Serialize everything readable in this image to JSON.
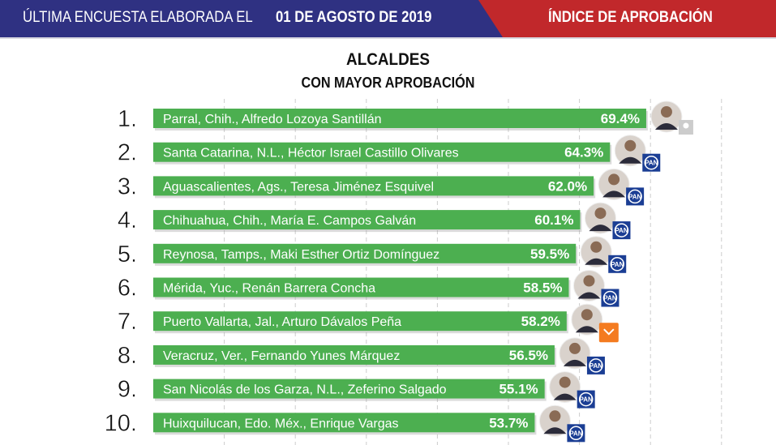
{
  "header": {
    "left_label": "ÚLTIMA ENCUESTA ELABORADA EL",
    "date": "01 DE AGOSTO DE 2019",
    "right_label": "ÍNDICE DE APROBACIÓN"
  },
  "colors": {
    "header_blue": "#2f3182",
    "header_red": "#c1282b",
    "bar": "#4caf50",
    "pan": "#1b3e94",
    "mc": "#f47b20"
  },
  "chart_data": {
    "type": "bar",
    "orientation": "horizontal",
    "title": "ALCALDES",
    "subtitle": "CON MAYOR APROBACIÓN",
    "xlim": [
      0,
      80
    ],
    "grid": true,
    "ranks": [
      "1.",
      "2.",
      "3.",
      "4.",
      "5.",
      "6.",
      "7.",
      "8.",
      "9.",
      "10."
    ],
    "categories": [
      "Parral, Chih., Alfredo Lozoya Santillán",
      "Santa Catarina, N.L., Héctor Israel Castillo Olivares",
      "Aguascalientes, Ags., Teresa Jiménez Esquivel",
      "Chihuahua, Chih., María E. Campos Galván",
      "Reynosa, Tamps., Maki Esther Ortiz Domínguez",
      "Mérida, Yuc., Renán Barrera Concha",
      "Puerto Vallarta, Jal., Arturo Dávalos Peña",
      "Veracruz, Ver., Fernando Yunes Márquez",
      "San Nicolás de los Garza, N.L., Zeferino Salgado",
      "Huixquilucan, Edo. Méx., Enrique Vargas"
    ],
    "values": [
      69.4,
      64.3,
      62.0,
      60.1,
      59.5,
      58.5,
      58.2,
      56.5,
      55.1,
      53.7
    ],
    "value_labels": [
      "69.4%",
      "64.3%",
      "62.0%",
      "60.1%",
      "59.5%",
      "58.5%",
      "58.2%",
      "56.5%",
      "55.1%",
      "53.7%"
    ],
    "parties": [
      "IND",
      "PAN",
      "PAN",
      "PAN",
      "PAN",
      "PAN",
      "MC",
      "PAN",
      "PAN",
      "PAN"
    ]
  }
}
